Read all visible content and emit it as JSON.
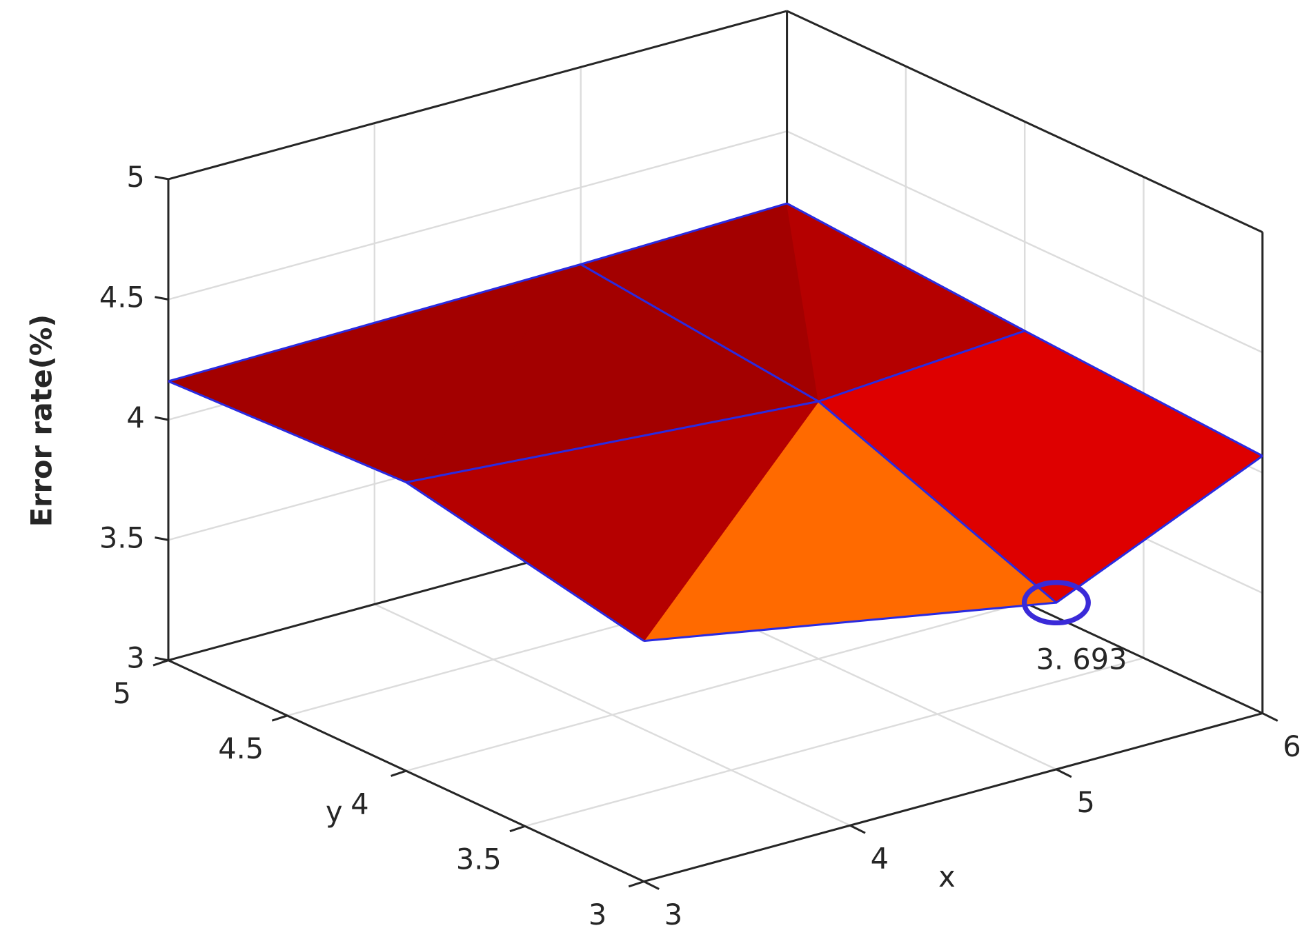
{
  "chart_data": {
    "type": "surface",
    "xlabel": "x",
    "ylabel": "y",
    "zlabel": "Error rate(%)",
    "x": [
      3,
      5,
      6
    ],
    "y": [
      3,
      4,
      5
    ],
    "z": [
      [
        4.0,
        3.693,
        4.07
      ],
      [
        4.2,
        4.07,
        4.13
      ],
      [
        4.16,
        4.18,
        4.2
      ]
    ],
    "xlim": [
      3,
      6
    ],
    "ylim": [
      3,
      5
    ],
    "zlim": [
      3,
      5
    ],
    "xticks": [
      3,
      4,
      5,
      6
    ],
    "yticks": [
      3,
      3.5,
      4,
      4.5,
      5
    ],
    "zticks": [
      3,
      3.5,
      4,
      4.5,
      5
    ],
    "grid": true,
    "colormap": [
      "#d4ff00",
      "#ffef00",
      "#ff6a00",
      "#de0000",
      "#b50000",
      "#a30000"
    ],
    "edge_color": "#2a2ae0",
    "annotation": {
      "text": "3. 693",
      "color": "#1f3f9f",
      "marker_color": "#3a2ad8"
    }
  }
}
